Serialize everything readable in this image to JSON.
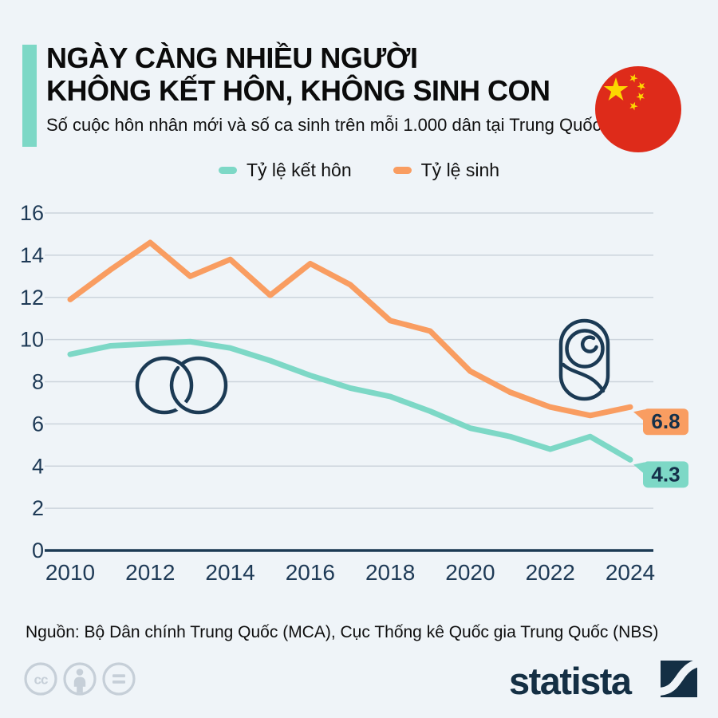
{
  "header": {
    "title_line1": "NGÀY CÀNG NHIỀU NGƯỜI",
    "title_line2": "KHÔNG KẾT HÔN, KHÔNG SINH CON",
    "subtitle": "Số cuộc hôn nhân mới và số ca sinh trên mỗi 1.000 dân tại Trung Quốc.",
    "accent_color": "#7dd8c6",
    "flag_icon": "china-flag-icon"
  },
  "legend": {
    "items": [
      {
        "label": "Tỷ lệ kết hôn",
        "color": "#7dd8c6"
      },
      {
        "label": "Tỷ lệ sinh",
        "color": "#f99d61"
      }
    ]
  },
  "chart_data": {
    "type": "line",
    "title": "Ngày càng nhiều người không kết hôn, không sinh con",
    "xlabel": "",
    "ylabel": "",
    "x": [
      2010,
      2011,
      2012,
      2013,
      2014,
      2015,
      2016,
      2017,
      2018,
      2019,
      2020,
      2021,
      2022,
      2023,
      2024
    ],
    "series": [
      {
        "name": "Tỷ lệ kết hôn",
        "color": "#7dd8c6",
        "end_label": "4.3",
        "values": [
          9.3,
          9.7,
          9.8,
          9.9,
          9.6,
          9.0,
          8.3,
          7.7,
          7.3,
          6.6,
          5.8,
          5.4,
          4.8,
          5.4,
          4.3
        ]
      },
      {
        "name": "Tỷ lệ sinh",
        "color": "#f99d61",
        "end_label": "6.8",
        "values": [
          11.9,
          13.3,
          14.6,
          13.0,
          13.8,
          12.1,
          13.6,
          12.6,
          10.9,
          10.4,
          8.5,
          7.5,
          6.8,
          6.4,
          6.8
        ]
      }
    ],
    "ylim": [
      0,
      16
    ],
    "ytick_step": 2,
    "xtick_labels": [
      "2010",
      "2012",
      "2014",
      "2016",
      "2018",
      "2020",
      "2022",
      "2024"
    ],
    "grid": true,
    "legend_position": "top",
    "annotations": [
      "wedding-rings-icon",
      "swaddled-baby-icon"
    ]
  },
  "value_label_text_color": "#15304a",
  "source": {
    "text": "Nguồn: Bộ Dân chính Trung Quốc (MCA), Cục Thống kê Quốc gia Trung Quốc (NBS)"
  },
  "footer": {
    "brand": "statista",
    "license_icons": [
      "cc-icon",
      "attribution-person-icon",
      "equals-icon"
    ]
  }
}
